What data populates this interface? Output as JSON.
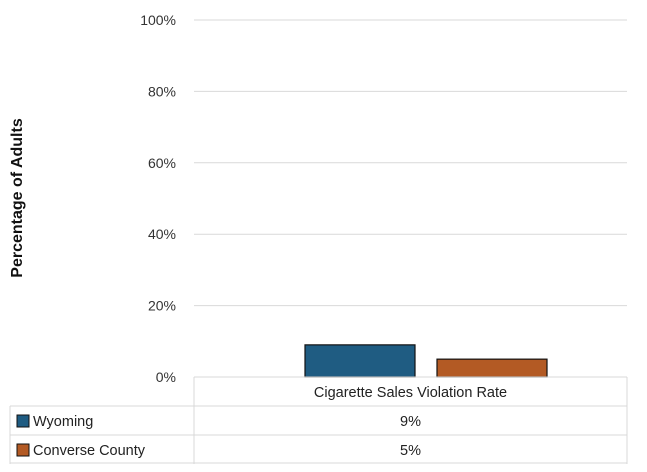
{
  "chart_data": {
    "type": "bar",
    "ylabel": "Percentage of Adults",
    "ylim": [
      0,
      100
    ],
    "yticks": [
      0,
      20,
      40,
      60,
      80,
      100
    ],
    "ytick_labels": [
      "0%",
      "20%",
      "40%",
      "60%",
      "80%",
      "100%"
    ],
    "categories": [
      "Cigarette Sales Violation Rate"
    ],
    "series": [
      {
        "name": "Wyoming",
        "values": [
          9
        ],
        "value_labels": [
          "9%"
        ],
        "color": "#1f5c82"
      },
      {
        "name": "Converse County",
        "values": [
          5
        ],
        "value_labels": [
          "5%"
        ],
        "color": "#b35a24"
      }
    ],
    "grid": true,
    "legend": "data-table-bottom"
  }
}
